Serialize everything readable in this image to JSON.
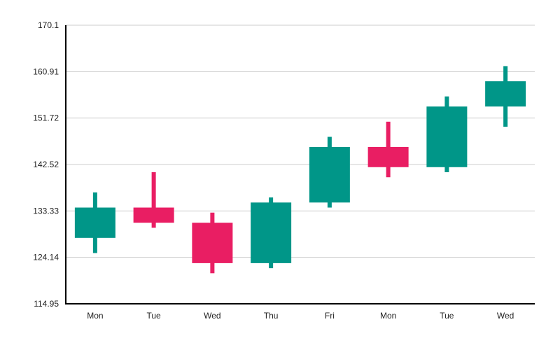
{
  "chart_data": {
    "type": "candlestick",
    "categories": [
      "Mon",
      "Tue",
      "Wed",
      "Thu",
      "Fri",
      "Mon",
      "Tue",
      "Wed"
    ],
    "candles": [
      {
        "open": 128.0,
        "close": 134.0,
        "high": 137.0,
        "low": 125.0
      },
      {
        "open": 134.0,
        "close": 131.0,
        "high": 141.0,
        "low": 130.0
      },
      {
        "open": 131.0,
        "close": 123.0,
        "high": 133.0,
        "low": 121.0
      },
      {
        "open": 123.0,
        "close": 135.0,
        "high": 136.0,
        "low": 122.0
      },
      {
        "open": 135.0,
        "close": 146.0,
        "high": 148.0,
        "low": 134.0
      },
      {
        "open": 146.0,
        "close": 142.0,
        "high": 151.0,
        "low": 140.0
      },
      {
        "open": 142.0,
        "close": 154.0,
        "high": 156.0,
        "low": 141.0
      },
      {
        "open": 154.0,
        "close": 159.0,
        "high": 162.0,
        "low": 150.0
      }
    ],
    "y_ticks": [
      "114.95",
      "124.14",
      "133.33",
      "142.52",
      "151.72",
      "160.91",
      "170.1"
    ],
    "ylim": [
      114.95,
      170.1
    ],
    "grid": true,
    "title": "",
    "xlabel": "",
    "ylabel": "",
    "colors": {
      "up": "#009688",
      "down": "#e91e63",
      "grid": "#cccccc",
      "axis": "#000000"
    }
  }
}
